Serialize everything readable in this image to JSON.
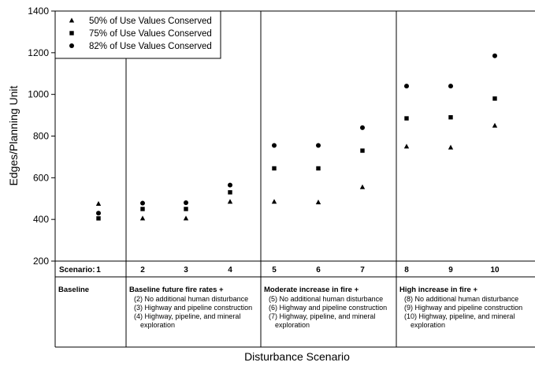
{
  "chart_data": {
    "type": "scatter",
    "ylabel": "Edges/Planning Unit",
    "xlabel": "Disturbance Scenario",
    "ylim": [
      200,
      1400
    ],
    "yticks": [
      200,
      400,
      600,
      800,
      1000,
      1200,
      1400
    ],
    "grid": false,
    "legend_position": "top-left",
    "scenario_prefix": "Scenario:",
    "scenarios": [
      "1",
      "2",
      "3",
      "4",
      "5",
      "6",
      "7",
      "8",
      "9",
      "10"
    ],
    "series": [
      {
        "name": "50% of Use Values Conserved",
        "marker": "triangle",
        "values": [
          475,
          405,
          405,
          485,
          485,
          482,
          555,
          750,
          745,
          850
        ]
      },
      {
        "name": "75% of Use Values Conserved",
        "marker": "square",
        "values": [
          405,
          450,
          450,
          530,
          645,
          645,
          730,
          885,
          890,
          980
        ]
      },
      {
        "name": "82% of Use Values Conserved",
        "marker": "circle",
        "values": [
          430,
          478,
          480,
          565,
          755,
          755,
          840,
          1040,
          1040,
          1185
        ]
      }
    ],
    "groups": [
      {
        "heading": "Baseline",
        "items": [],
        "scenario_indices": [
          0
        ]
      },
      {
        "heading": "Baseline future fire rates +",
        "items": [
          "(2) No additional human disturbance",
          "(3) Highway and pipeline construction",
          "(4) Highway, pipeline, and mineral",
          "exploration"
        ],
        "scenario_indices": [
          1,
          2,
          3
        ]
      },
      {
        "heading": "Moderate increase in fire +",
        "items": [
          "(5) No additional human disturbance",
          "(6) Highway and pipeline construction",
          "(7) Highway, pipeline, and mineral",
          "exploration"
        ],
        "scenario_indices": [
          4,
          5,
          6
        ]
      },
      {
        "heading": "High increase in fire +",
        "items": [
          "(8) No additional human disturbance",
          "(9) Highway and pipeline construction",
          "(10) Highway, pipeline, and mineral",
          "exploration"
        ],
        "scenario_indices": [
          7,
          8,
          9
        ]
      }
    ]
  }
}
